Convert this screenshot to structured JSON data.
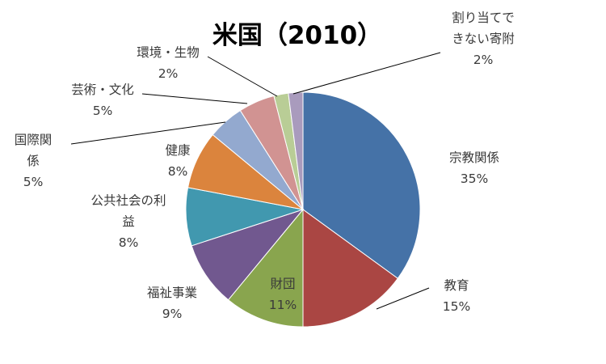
{
  "chart_data": {
    "type": "pie",
    "title": "米国（2010）",
    "slices": [
      {
        "name": "宗教関係",
        "label_lines": [
          "宗教関係"
        ],
        "value": 35,
        "value_text": "35%",
        "color": "#4572A7"
      },
      {
        "name": "教育",
        "label_lines": [
          "教育"
        ],
        "value": 15,
        "value_text": "15%",
        "color": "#AA4643"
      },
      {
        "name": "財団",
        "label_lines": [
          "財団"
        ],
        "value": 11,
        "value_text": "11%",
        "color": "#89A54E"
      },
      {
        "name": "福祉事業",
        "label_lines": [
          "福祉事業"
        ],
        "value": 9,
        "value_text": "9%",
        "color": "#71588F"
      },
      {
        "name": "公共社会の利益",
        "label_lines": [
          "公共社会の利",
          "益"
        ],
        "value": 8,
        "value_text": "8%",
        "color": "#4198AF"
      },
      {
        "name": "健康",
        "label_lines": [
          "健康"
        ],
        "value": 8,
        "value_text": "8%",
        "color": "#DB843D"
      },
      {
        "name": "国際関係",
        "label_lines": [
          "国際関",
          "係"
        ],
        "value": 5,
        "value_text": "5%",
        "color": "#93A9CF"
      },
      {
        "name": "芸術・文化",
        "label_lines": [
          "芸術・文化"
        ],
        "value": 5,
        "value_text": "5%",
        "color": "#D19392"
      },
      {
        "name": "環境・生物",
        "label_lines": [
          "環境・生物"
        ],
        "value": 2,
        "value_text": "2%",
        "color": "#B9CD96"
      },
      {
        "name": "割り当てできない寄附",
        "label_lines": [
          "割り当てで",
          "きない寄附"
        ],
        "value": 2,
        "value_text": "2%",
        "color": "#A99BBD"
      }
    ]
  }
}
